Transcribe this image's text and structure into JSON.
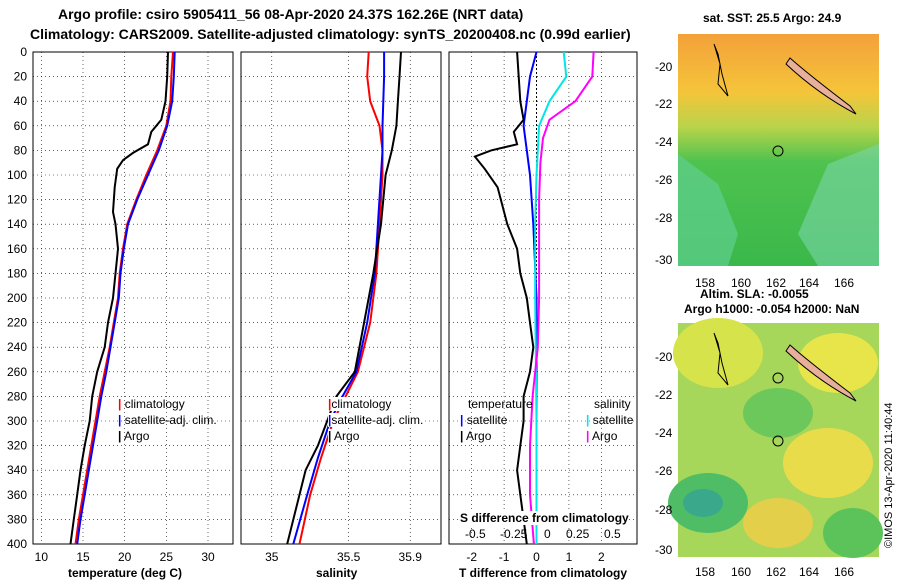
{
  "titles": {
    "line1": "Argo profile: csiro 5905411_56 08-Apr-2020 24.37S 162.26E (NRT data)",
    "line2": "Climatology: CARS2009. Satellite-adjusted climatology: synTS_20200408.nc (0.99d earlier)"
  },
  "colors": {
    "climatology": "#ff0000",
    "satellite": "#0000ff",
    "argo": "#000000",
    "sal_sat": "#00e5e5",
    "sal_argo": "#ff00ff"
  },
  "chart_data": [
    {
      "type": "line",
      "id": "temperature",
      "xlabel": "temperature (deg C)",
      "xlim": [
        9,
        33
      ],
      "ylim": [
        400,
        0
      ],
      "xticks": [
        10,
        15,
        20,
        25,
        30
      ],
      "yticks": [
        0,
        20,
        40,
        60,
        80,
        100,
        120,
        140,
        160,
        180,
        200,
        220,
        240,
        260,
        280,
        300,
        320,
        340,
        360,
        380,
        400
      ],
      "legend": [
        "climatology",
        "satellite-adj. clim.",
        "Argo"
      ],
      "series": [
        {
          "name": "climatology",
          "points": [
            [
              25.8,
              0
            ],
            [
              25.6,
              20
            ],
            [
              25.5,
              40
            ],
            [
              25,
              60
            ],
            [
              23.9,
              80
            ],
            [
              22.6,
              100
            ],
            [
              21.4,
              120
            ],
            [
              20.3,
              140
            ],
            [
              19.8,
              160
            ],
            [
              19.4,
              180
            ],
            [
              19.2,
              200
            ],
            [
              18.7,
              220
            ],
            [
              18.2,
              240
            ],
            [
              17.6,
              260
            ],
            [
              17.0,
              280
            ],
            [
              16.5,
              300
            ],
            [
              16.0,
              320
            ],
            [
              15.5,
              340
            ],
            [
              15.0,
              360
            ],
            [
              14.5,
              380
            ],
            [
              14.1,
              400
            ]
          ]
        },
        {
          "name": "satellite-adj. clim.",
          "points": [
            [
              26,
              0
            ],
            [
              25.9,
              20
            ],
            [
              25.7,
              40
            ],
            [
              25.1,
              60
            ],
            [
              24.1,
              80
            ],
            [
              22.8,
              100
            ],
            [
              21.5,
              120
            ],
            [
              20.4,
              140
            ],
            [
              19.9,
              160
            ],
            [
              19.5,
              180
            ],
            [
              19.3,
              200
            ],
            [
              18.8,
              220
            ],
            [
              18.3,
              240
            ],
            [
              17.8,
              260
            ],
            [
              17.2,
              280
            ],
            [
              16.7,
              300
            ],
            [
              16.2,
              320
            ],
            [
              15.7,
              340
            ],
            [
              15.2,
              360
            ],
            [
              14.7,
              380
            ],
            [
              14.3,
              400
            ]
          ]
        },
        {
          "name": "Argo",
          "points": [
            [
              25.2,
              0
            ],
            [
              25.1,
              20
            ],
            [
              24.9,
              40
            ],
            [
              24.4,
              55
            ],
            [
              23.2,
              65
            ],
            [
              22.8,
              75
            ],
            [
              21.0,
              82
            ],
            [
              19.8,
              88
            ],
            [
              19.1,
              95
            ],
            [
              18.8,
              110
            ],
            [
              18.6,
              130
            ],
            [
              18.9,
              140
            ],
            [
              19.2,
              160
            ],
            [
              18.9,
              180
            ],
            [
              18.6,
              200
            ],
            [
              18.0,
              220
            ],
            [
              17.6,
              240
            ],
            [
              16.7,
              260
            ],
            [
              16.1,
              280
            ],
            [
              15.8,
              300
            ],
            [
              15.2,
              320
            ],
            [
              14.7,
              340
            ],
            [
              14.3,
              360
            ],
            [
              13.9,
              380
            ],
            [
              13.5,
              400
            ]
          ]
        }
      ]
    },
    {
      "type": "line",
      "id": "salinity",
      "xlabel": "salinity",
      "xlim": [
        34.8,
        36.1
      ],
      "ylim": [
        400,
        0
      ],
      "xticks": [
        35,
        35.5,
        35.9
      ],
      "legend": [
        "climatology",
        "satellite-adj. clim.",
        "Argo"
      ],
      "series": [
        {
          "name": "climatology",
          "points": [
            [
              35.63,
              0
            ],
            [
              35.62,
              20
            ],
            [
              35.64,
              40
            ],
            [
              35.7,
              60
            ],
            [
              35.72,
              80
            ],
            [
              35.72,
              100
            ],
            [
              35.7,
              140
            ],
            [
              35.68,
              180
            ],
            [
              35.64,
              220
            ],
            [
              35.56,
              260
            ],
            [
              35.48,
              280
            ],
            [
              35.4,
              300
            ],
            [
              35.32,
              330
            ],
            [
              35.25,
              360
            ],
            [
              35.18,
              400
            ]
          ]
        },
        {
          "name": "satellite-adj. clim.",
          "points": [
            [
              35.73,
              0
            ],
            [
              35.73,
              20
            ],
            [
              35.72,
              60
            ],
            [
              35.72,
              80
            ],
            [
              35.71,
              100
            ],
            [
              35.69,
              140
            ],
            [
              35.67,
              180
            ],
            [
              35.62,
              220
            ],
            [
              35.55,
              260
            ],
            [
              35.46,
              280
            ],
            [
              35.38,
              300
            ],
            [
              35.3,
              330
            ],
            [
              35.23,
              360
            ],
            [
              35.14,
              400
            ]
          ]
        },
        {
          "name": "Argo",
          "points": [
            [
              35.84,
              0
            ],
            [
              35.83,
              20
            ],
            [
              35.82,
              40
            ],
            [
              35.81,
              60
            ],
            [
              35.78,
              80
            ],
            [
              35.74,
              100
            ],
            [
              35.71,
              140
            ],
            [
              35.66,
              180
            ],
            [
              35.6,
              220
            ],
            [
              35.54,
              260
            ],
            [
              35.42,
              280
            ],
            [
              35.36,
              300
            ],
            [
              35.3,
              320
            ],
            [
              35.22,
              340
            ],
            [
              35.16,
              370
            ],
            [
              35.1,
              400
            ]
          ]
        }
      ]
    },
    {
      "type": "line",
      "id": "difference",
      "xlabel": "T difference from climatology",
      "xlabel2": "S difference from climatology",
      "xlim": [
        -2.7,
        3.1
      ],
      "ylim": [
        400,
        0
      ],
      "xticks": [
        -2,
        -1,
        0,
        1,
        2
      ],
      "sticks": [
        "-0.5",
        "-0.25",
        "0",
        "0.25",
        "0.5"
      ],
      "legend_temp_title": "temperature",
      "legend_sal_title": "salinity",
      "legend_temp": [
        "satellite",
        "Argo"
      ],
      "legend_sal": [
        "satellite",
        "Argo"
      ],
      "series": [
        {
          "name": "T satellite",
          "points": [
            [
              0,
              0
            ],
            [
              -0.2,
              20
            ],
            [
              -0.3,
              40
            ],
            [
              -0.4,
              60
            ],
            [
              -0.3,
              80
            ],
            [
              -0.2,
              100
            ],
            [
              -0.1,
              140
            ],
            [
              0,
              200
            ],
            [
              0,
              300
            ],
            [
              0,
              400
            ]
          ]
        },
        {
          "name": "T Argo",
          "points": [
            [
              -0.6,
              0
            ],
            [
              -0.55,
              20
            ],
            [
              -0.5,
              40
            ],
            [
              -0.4,
              55
            ],
            [
              -0.7,
              65
            ],
            [
              -0.6,
              75
            ],
            [
              -1.4,
              80
            ],
            [
              -1.9,
              85
            ],
            [
              -1.6,
              95
            ],
            [
              -1.2,
              110
            ],
            [
              -0.9,
              140
            ],
            [
              -0.6,
              160
            ],
            [
              -0.5,
              180
            ],
            [
              -0.3,
              200
            ],
            [
              -0.2,
              220
            ],
            [
              -0.1,
              240
            ],
            [
              -0.2,
              260
            ],
            [
              -0.4,
              280
            ],
            [
              -0.4,
              300
            ],
            [
              -0.5,
              320
            ],
            [
              -0.6,
              340
            ],
            [
              -0.5,
              360
            ],
            [
              -0.4,
              380
            ],
            [
              -0.3,
              400
            ]
          ]
        },
        {
          "name": "S satellite",
          "points": [
            [
              0.21,
              0
            ],
            [
              0.23,
              20
            ],
            [
              0.1,
              40
            ],
            [
              0.02,
              60
            ],
            [
              0.01,
              80
            ],
            [
              0.0,
              100
            ],
            [
              -0.01,
              140
            ],
            [
              -0.01,
              200
            ],
            [
              0.0,
              300
            ],
            [
              0.0,
              400
            ]
          ]
        },
        {
          "name": "S Argo",
          "points": [
            [
              0.44,
              0
            ],
            [
              0.43,
              20
            ],
            [
              0.3,
              40
            ],
            [
              0.1,
              55
            ],
            [
              0.05,
              70
            ],
            [
              0.03,
              90
            ],
            [
              0.02,
              120
            ],
            [
              0.02,
              160
            ],
            [
              0.02,
              200
            ],
            [
              0.01,
              240
            ],
            [
              -0.03,
              280
            ],
            [
              -0.05,
              320
            ],
            [
              -0.05,
              360
            ],
            [
              -0.02,
              400
            ]
          ]
        }
      ]
    }
  ],
  "maps": {
    "map1": {
      "title": "sat. SST: 25.5 Argo: 24.9",
      "lat_ticks": [
        "-20",
        "-22",
        "-24",
        "-26",
        "-28",
        "-30"
      ],
      "lon_ticks": [
        "158",
        "160",
        "162",
        "164",
        "166"
      ]
    },
    "map2": {
      "title1": "Altim. SLA: -0.0055",
      "title2": "Argo h1000: -0.054 h2000: NaN",
      "lat_ticks": [
        "-20",
        "-22",
        "-24",
        "-26",
        "-28",
        "-30"
      ],
      "lon_ticks": [
        "158",
        "160",
        "162",
        "164",
        "166"
      ]
    }
  },
  "credit": "©IMOS 13-Apr-2020 11:40:44"
}
